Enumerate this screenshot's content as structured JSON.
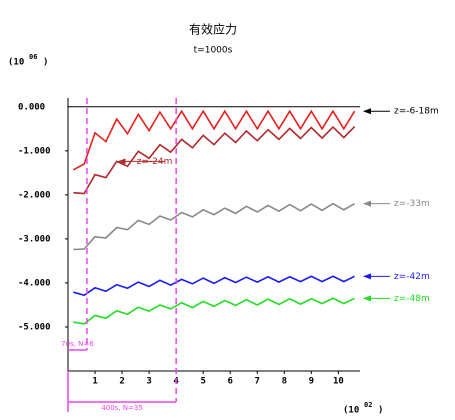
{
  "chart_data": {
    "type": "line",
    "title": "有效应力",
    "subtitle": "t=1000s",
    "y_unit": {
      "base": "(10",
      "exponent": "06",
      "close": ")"
    },
    "x_unit": {
      "base": "(10",
      "exponent": "02",
      "close": ")"
    },
    "xlim": [
      0,
      10.8
    ],
    "ylim": [
      -6,
      0.2
    ],
    "xticks": [
      1,
      2,
      3,
      4,
      5,
      6,
      7,
      8,
      9,
      10
    ],
    "yticks": [
      {
        "value": 0,
        "label": "0.000"
      },
      {
        "value": -1,
        "label": "-1.000"
      },
      {
        "value": -2,
        "label": "-2.000"
      },
      {
        "value": -3,
        "label": "-3.000"
      },
      {
        "value": -4,
        "label": "-4.000"
      },
      {
        "value": -5,
        "label": "-5.000"
      }
    ],
    "x": [
      0.2,
      0.6,
      1.0,
      1.4,
      1.8,
      2.2,
      2.6,
      3.0,
      3.4,
      3.8,
      4.2,
      4.6,
      5.0,
      5.4,
      5.8,
      6.2,
      6.6,
      7.0,
      7.4,
      7.8,
      8.2,
      8.6,
      9.0,
      9.4,
      9.8,
      10.2,
      10.6
    ],
    "series": [
      {
        "name": "z=-6-18m",
        "color": "#e8201e",
        "values": [
          -1.43,
          -1.3,
          -0.59,
          -0.79,
          -0.28,
          -0.61,
          -0.17,
          -0.54,
          -0.12,
          -0.5,
          -0.1,
          -0.5,
          -0.1,
          -0.5,
          -0.1,
          -0.5,
          -0.1,
          -0.5,
          -0.1,
          -0.5,
          -0.1,
          -0.5,
          -0.1,
          -0.5,
          -0.1,
          -0.5,
          -0.1
        ]
      },
      {
        "name": "z=-24m",
        "color": "#b0282a",
        "values": [
          -1.95,
          -1.97,
          -1.54,
          -1.61,
          -1.24,
          -1.35,
          -1.01,
          -1.17,
          -0.86,
          -1.03,
          -0.74,
          -0.93,
          -0.65,
          -0.86,
          -0.6,
          -0.81,
          -0.55,
          -0.77,
          -0.52,
          -0.74,
          -0.49,
          -0.72,
          -0.47,
          -0.71,
          -0.46,
          -0.7,
          -0.45
        ]
      },
      {
        "name": "z=-33m",
        "color": "#888888",
        "values": [
          -3.24,
          -3.23,
          -2.95,
          -2.98,
          -2.74,
          -2.79,
          -2.58,
          -2.67,
          -2.48,
          -2.57,
          -2.4,
          -2.5,
          -2.34,
          -2.45,
          -2.3,
          -2.42,
          -2.26,
          -2.39,
          -2.24,
          -2.37,
          -2.22,
          -2.36,
          -2.21,
          -2.35,
          -2.2,
          -2.34,
          -2.2
        ]
      },
      {
        "name": "z=-42m",
        "color": "#1a1aff",
        "values": [
          -4.21,
          -4.28,
          -4.11,
          -4.19,
          -4.04,
          -4.12,
          -3.98,
          -4.08,
          -3.94,
          -4.05,
          -3.92,
          -4.02,
          -3.89,
          -4.01,
          -3.88,
          -3.99,
          -3.87,
          -3.98,
          -3.86,
          -3.98,
          -3.86,
          -3.97,
          -3.85,
          -3.97,
          -3.85,
          -3.97,
          -3.85
        ]
      },
      {
        "name": "z=-48m",
        "color": "#22dd22",
        "values": [
          -4.89,
          -4.93,
          -4.74,
          -4.8,
          -4.63,
          -4.71,
          -4.55,
          -4.64,
          -4.5,
          -4.59,
          -4.45,
          -4.56,
          -4.42,
          -4.53,
          -4.4,
          -4.51,
          -4.38,
          -4.5,
          -4.37,
          -4.49,
          -4.36,
          -4.48,
          -4.36,
          -4.47,
          -4.35,
          -4.47,
          -4.35
        ]
      }
    ],
    "markers": [
      {
        "x": 0.7,
        "label": "70s, N=6"
      },
      {
        "x": 4.0,
        "label": "400s, N=35"
      }
    ],
    "marker_color": "#ee44ee"
  }
}
